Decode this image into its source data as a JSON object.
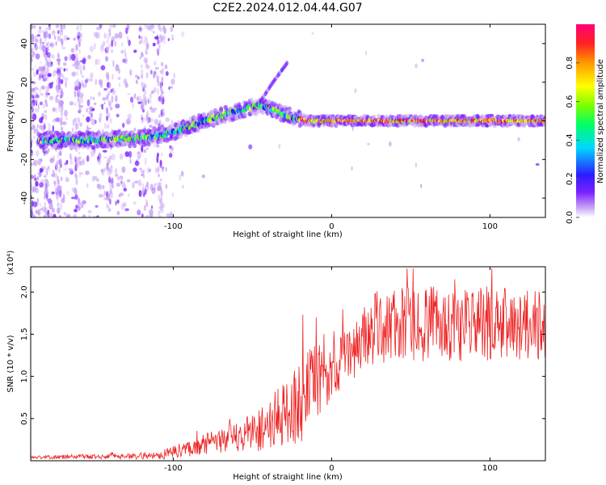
{
  "title": "C2E2.2024.012.04.44.G07",
  "chart_data": [
    {
      "type": "heatmap",
      "name": "spectrogram",
      "xlabel": "Height of straight line (km)",
      "ylabel": "Frequency (Hz)",
      "xlim": [
        -190,
        135
      ],
      "ylim": [
        -50,
        50
      ],
      "x_ticks": [
        -100,
        0,
        100
      ],
      "y_ticks": [
        -40,
        -20,
        0,
        20,
        40
      ],
      "x_tick_labels": [
        "-100",
        "0",
        "100"
      ],
      "y_tick_labels": [
        "-40",
        "-20",
        "0",
        "20",
        "40"
      ],
      "colorbar": {
        "label": "Normalized spectral amplitude",
        "range": [
          0.0,
          1.0
        ],
        "ticks": [
          0.0,
          0.2,
          0.4,
          0.6,
          0.8
        ],
        "tick_labels": [
          "0.0",
          "0.2",
          "0.4",
          "0.6",
          "0.8"
        ],
        "colors": [
          "#ffffff",
          "#c9a6f5",
          "#7a22ff",
          "#2b1cff",
          "#00d8ff",
          "#00ff66",
          "#7bff00",
          "#ffff00",
          "#ff9900",
          "#ff2222",
          "#ff0077"
        ]
      },
      "ridge": {
        "description_points_x": [
          -185,
          -150,
          -120,
          -100,
          -80,
          -60,
          -45,
          -35,
          -25,
          -15,
          0,
          50,
          100,
          135
        ],
        "description_points_y": [
          -10,
          -10,
          -9,
          -6,
          0,
          5,
          8,
          5,
          2,
          0,
          0,
          0,
          0,
          0
        ]
      },
      "diverging_branch": {
        "x": [
          -45,
          -37,
          -28
        ],
        "y": [
          10,
          20,
          30
        ]
      }
    },
    {
      "type": "line",
      "name": "snr",
      "xlabel": "Height of straight line (km)",
      "ylabel": "SNR (10 * v/v)",
      "y_scale_label": "(x10⁴)",
      "xlim": [
        -190,
        135
      ],
      "ylim": [
        0,
        2.3
      ],
      "x_ticks": [
        -100,
        0,
        100
      ],
      "y_ticks": [
        0.5,
        1.0,
        1.5,
        2.0
      ],
      "x_tick_labels": [
        "-100",
        "0",
        "100"
      ],
      "y_tick_labels": [
        "0.5",
        "1.0",
        "1.5",
        "2.0"
      ],
      "color": "#ee2222",
      "envelope": {
        "x": [
          -190,
          -150,
          -110,
          -100,
          -80,
          -60,
          -40,
          -30,
          -20,
          -10,
          0,
          10,
          20,
          30,
          60,
          100,
          135
        ],
        "mean": [
          0.04,
          0.05,
          0.06,
          0.1,
          0.2,
          0.28,
          0.42,
          0.55,
          0.7,
          0.9,
          1.05,
          1.25,
          1.45,
          1.6,
          1.62,
          1.62,
          1.6
        ],
        "spread": [
          0.02,
          0.03,
          0.04,
          0.08,
          0.12,
          0.18,
          0.3,
          0.4,
          0.5,
          0.5,
          0.3,
          0.35,
          0.4,
          0.45,
          0.45,
          0.45,
          0.4
        ]
      }
    }
  ]
}
